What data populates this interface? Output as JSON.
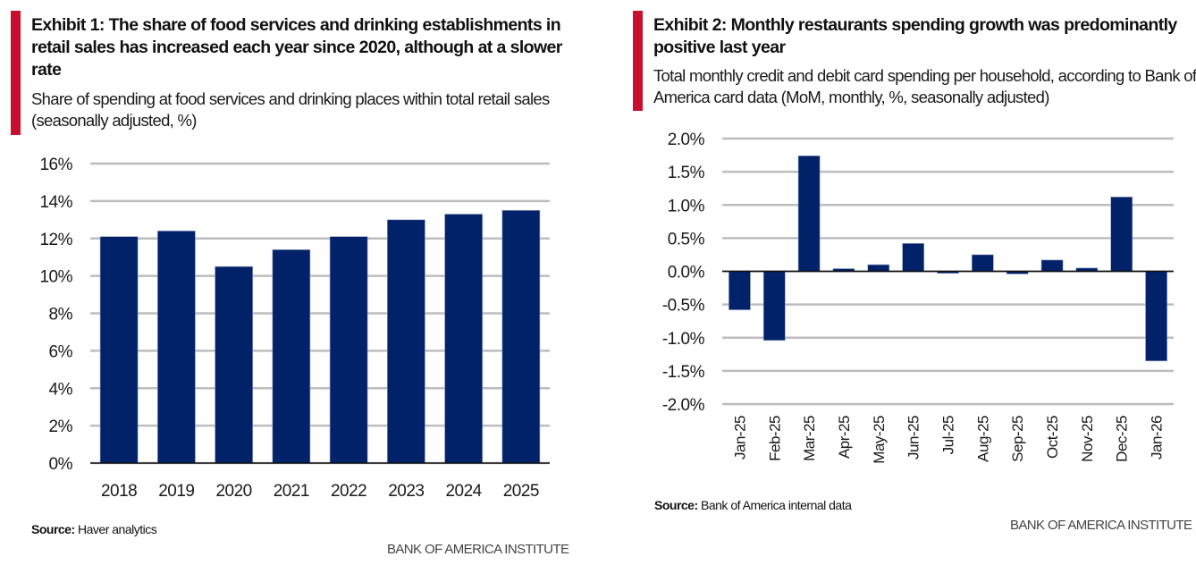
{
  "colors": {
    "accent": "#C8102E",
    "bar": "#012169",
    "grid": "#BDBDBD",
    "axis": "#111111",
    "brand_text": "#444444"
  },
  "brand": "BANK OF AMERICA INSTITUTE",
  "exhibit1": {
    "title": "Exhibit 1: The share of food services and drinking establishments in retail sales has increased each year since 2020, although at a slower rate",
    "subtitle": "Share of spending at food services and drinking places within total retail sales (seasonally adjusted, %)",
    "source_label": "Source:",
    "source_text": " Haver analytics"
  },
  "exhibit2": {
    "title": "Exhibit 2: Monthly restaurants spending growth was predominantly positive last year",
    "subtitle": "Total monthly credit and debit card spending per household, according to Bank of America card data (MoM, monthly, %, seasonally adjusted)",
    "source_label": "Source:",
    "source_text": " Bank of America internal data"
  },
  "chart_data": [
    {
      "type": "bar",
      "title": "Exhibit 1: The share of food services and drinking establishments in retail sales has increased each year since 2020, although at a slower rate",
      "subtitle": "Share of spending at food services and drinking places within total retail sales (seasonally adjusted, %)",
      "categories": [
        "2018",
        "2019",
        "2020",
        "2021",
        "2022",
        "2023",
        "2024",
        "2025"
      ],
      "values": [
        12.1,
        12.4,
        10.5,
        11.4,
        12.1,
        13.0,
        13.3,
        13.5
      ],
      "xlabel": "",
      "ylabel": "",
      "ylim": [
        0,
        16
      ],
      "yticks": [
        0,
        2,
        4,
        6,
        8,
        10,
        12,
        14,
        16
      ],
      "ytick_labels": [
        "0%",
        "2%",
        "4%",
        "6%",
        "8%",
        "10%",
        "12%",
        "14%",
        "16%"
      ],
      "grid": true,
      "legend": "none",
      "source": "Haver analytics"
    },
    {
      "type": "bar",
      "title": "Exhibit 2: Monthly restaurants spending growth was predominantly positive last year",
      "subtitle": "Total monthly credit and debit card spending per household, according to Bank of America card data (MoM, monthly, %, seasonally adjusted)",
      "categories": [
        "Jan-25",
        "Feb-25",
        "Mar-25",
        "Apr-25",
        "May-25",
        "Jun-25",
        "Jul-25",
        "Aug-25",
        "Sep-25",
        "Oct-25",
        "Nov-25",
        "Dec-25",
        "Jan-26"
      ],
      "values": [
        -0.58,
        -1.04,
        1.74,
        0.04,
        0.1,
        0.42,
        -0.03,
        0.25,
        -0.04,
        0.17,
        0.05,
        1.12,
        -1.35
      ],
      "xlabel": "",
      "ylabel": "",
      "ylim": [
        -2.0,
        2.0
      ],
      "yticks": [
        -2.0,
        -1.5,
        -1.0,
        -0.5,
        0.0,
        0.5,
        1.0,
        1.5,
        2.0
      ],
      "ytick_labels": [
        "-2.0%",
        "-1.5%",
        "-1.0%",
        "-0.5%",
        "0.0%",
        "0.5%",
        "1.0%",
        "1.5%",
        "2.0%"
      ],
      "grid": true,
      "legend": "none",
      "source": "Bank of America internal data"
    }
  ]
}
